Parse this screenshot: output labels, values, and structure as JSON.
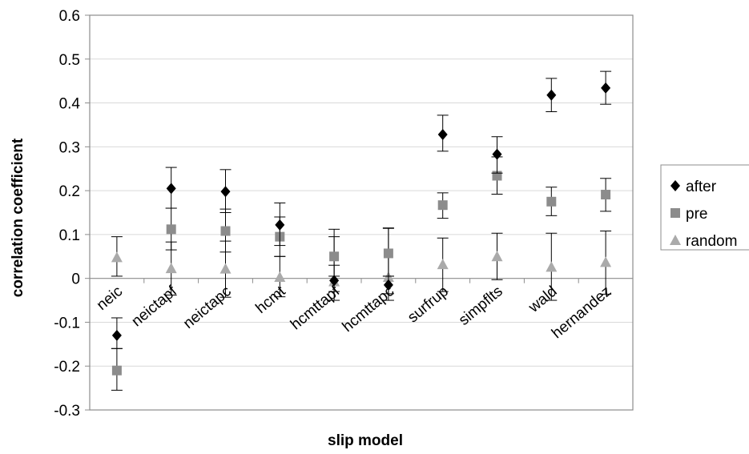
{
  "chart_data": {
    "type": "scatter",
    "title": "",
    "xlabel": "slip model",
    "ylabel": "correlation coefficient",
    "ylim": [
      -0.3,
      0.6
    ],
    "yticks": [
      -0.3,
      -0.2,
      -0.1,
      0,
      0.1,
      0.2,
      0.3,
      0.4,
      0.5,
      0.6
    ],
    "ytick_labels": [
      "-0.3",
      "-0.2",
      "-0.1",
      "0",
      "0.1",
      "0.2",
      "0.3",
      "0.4",
      "0.5",
      "0.6"
    ],
    "grid": true,
    "legend_position": "right",
    "categories": [
      "neic",
      "neictapf",
      "neictapc",
      "hcmt",
      "hcmttapf",
      "hcmttapc",
      "surfrup",
      "simpflts",
      "wald",
      "hernandez"
    ],
    "series": [
      {
        "name": "after",
        "marker": "diamond",
        "color": "#000000",
        "values": [
          -0.13,
          0.205,
          0.198,
          0.122,
          -0.005,
          -0.015,
          0.328,
          0.283,
          0.418,
          0.434
        ],
        "error_low": [
          -0.16,
          0.16,
          0.15,
          0.075,
          -0.03,
          -0.035,
          0.29,
          0.24,
          0.38,
          0.397
        ],
        "error_high": [
          -0.09,
          0.253,
          0.248,
          0.172,
          0.03,
          0.005,
          0.372,
          0.323,
          0.456,
          0.472
        ]
      },
      {
        "name": "pre",
        "marker": "square",
        "color": "#8c8c8c",
        "values": [
          -0.21,
          0.112,
          0.108,
          0.095,
          0.05,
          0.057,
          0.167,
          0.234,
          0.175,
          0.191
        ],
        "error_low": [
          -0.255,
          0.065,
          0.06,
          0.05,
          0.005,
          0.005,
          0.137,
          0.192,
          0.143,
          0.153
        ],
        "error_high": [
          -0.16,
          0.16,
          0.158,
          0.14,
          0.095,
          0.115,
          0.195,
          0.277,
          0.208,
          0.228
        ]
      },
      {
        "name": "random",
        "marker": "triangle",
        "color": "#aaaaaa",
        "values": [
          0.048,
          0.023,
          0.022,
          0.003,
          -0.007,
          0.003,
          0.032,
          0.05,
          0.026,
          0.037
        ],
        "error_low": [
          0.005,
          -0.038,
          -0.043,
          -0.042,
          -0.05,
          -0.05,
          -0.03,
          -0.003,
          -0.05,
          -0.036
        ],
        "error_high": [
          0.095,
          0.083,
          0.085,
          0.05,
          0.112,
          0.114,
          0.092,
          0.103,
          0.103,
          0.108
        ]
      }
    ]
  }
}
